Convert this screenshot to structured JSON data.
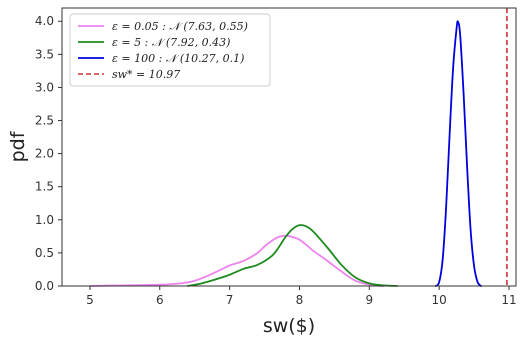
{
  "chart_data": {
    "type": "line",
    "title": "",
    "xlabel": "sw($)",
    "ylabel": "pdf",
    "xlim": [
      4.6,
      11.1
    ],
    "ylim": [
      0.0,
      4.2
    ],
    "xticks": [
      5,
      6,
      7,
      8,
      9,
      10,
      11
    ],
    "yticks": [
      0.0,
      0.5,
      1.0,
      1.5,
      2.0,
      2.5,
      3.0,
      3.5,
      4.0
    ],
    "tick_labels_x": [
      "5",
      "6",
      "7",
      "8",
      "9",
      "10",
      "11"
    ],
    "tick_labels_y": [
      "0.0",
      "0.5",
      "1.0",
      "1.5",
      "2.0",
      "2.5",
      "3.0",
      "3.5",
      "4.0"
    ],
    "grid": false,
    "legend_position": "top-left",
    "series": [
      {
        "name": "ε = 0.05 : 𝒩 (7.63, 0.55)",
        "color": "#ee82ee",
        "style": "solid",
        "x": [
          5.0,
          5.5,
          6.0,
          6.3,
          6.5,
          6.7,
          6.9,
          7.0,
          7.2,
          7.4,
          7.5,
          7.6,
          7.7,
          7.8,
          7.9,
          8.0,
          8.1,
          8.2,
          8.4,
          8.6,
          8.8,
          9.0,
          9.2
        ],
        "y": [
          0.0,
          0.01,
          0.02,
          0.04,
          0.08,
          0.16,
          0.26,
          0.31,
          0.38,
          0.5,
          0.6,
          0.68,
          0.74,
          0.76,
          0.74,
          0.7,
          0.62,
          0.53,
          0.38,
          0.22,
          0.08,
          0.02,
          0.0
        ]
      },
      {
        "name": "ε = 5 : 𝒩 (7.92, 0.43)",
        "color": "#1e8b1e",
        "style": "solid",
        "x": [
          6.4,
          6.6,
          6.8,
          7.0,
          7.2,
          7.4,
          7.6,
          7.7,
          7.8,
          7.9,
          8.0,
          8.1,
          8.2,
          8.4,
          8.6,
          8.8,
          9.0,
          9.2,
          9.4
        ],
        "y": [
          0.0,
          0.04,
          0.1,
          0.17,
          0.26,
          0.32,
          0.45,
          0.58,
          0.74,
          0.86,
          0.92,
          0.9,
          0.82,
          0.58,
          0.32,
          0.13,
          0.04,
          0.01,
          0.0
        ]
      },
      {
        "name": "ε = 100 : 𝒩 (10.27, 0.1)",
        "color": "#0000dd",
        "style": "solid",
        "x": [
          9.95,
          10.0,
          10.05,
          10.1,
          10.15,
          10.2,
          10.25,
          10.27,
          10.3,
          10.35,
          10.4,
          10.45,
          10.5,
          10.55,
          10.6
        ],
        "y": [
          0.0,
          0.06,
          0.4,
          1.2,
          2.3,
          3.3,
          3.9,
          3.99,
          3.8,
          2.9,
          1.8,
          0.85,
          0.3,
          0.06,
          0.0
        ]
      }
    ],
    "reference_lines": [
      {
        "name": "sw* = 10.97",
        "orientation": "vertical",
        "x": 10.97,
        "color": "#cc3333",
        "style": "dashed"
      }
    ]
  }
}
